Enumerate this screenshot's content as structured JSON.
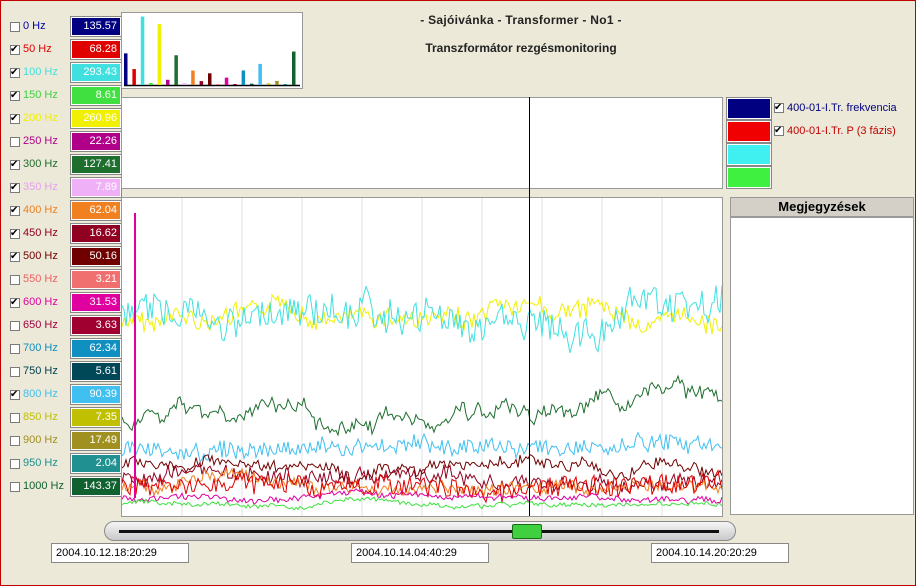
{
  "title": "- Sajóivánka - Transformer - No1 -",
  "subtitle": "Transzformátor rezgésmonitoring",
  "channels": [
    {
      "label": "0 Hz",
      "value": "135.57",
      "checked": false,
      "color": "#0000b0",
      "bg": "#000080"
    },
    {
      "label": "50 Hz",
      "value": "68.28",
      "checked": true,
      "color": "#e00000",
      "bg": "#e00000"
    },
    {
      "label": "100 Hz",
      "value": "293.43",
      "checked": true,
      "color": "#40e0e0",
      "bg": "#40e0e0"
    },
    {
      "label": "150 Hz",
      "value": "8.61",
      "checked": true,
      "color": "#40d040",
      "bg": "#40e040"
    },
    {
      "label": "200 Hz",
      "value": "260.96",
      "checked": true,
      "color": "#f0f000",
      "bg": "#f0f000"
    },
    {
      "label": "250 Hz",
      "value": "22.26",
      "checked": false,
      "color": "#b0008a",
      "bg": "#b0008a"
    },
    {
      "label": "300 Hz",
      "value": "127.41",
      "checked": true,
      "color": "#1e6e2e",
      "bg": "#1e6e2e"
    },
    {
      "label": "350 Hz",
      "value": "7.89",
      "checked": true,
      "color": "#e8a0f0",
      "bg": "#f0b0f8"
    },
    {
      "label": "400 Hz",
      "value": "62.04",
      "checked": true,
      "color": "#f08020",
      "bg": "#f08020"
    },
    {
      "label": "450 Hz",
      "value": "16.62",
      "checked": true,
      "color": "#900020",
      "bg": "#900020"
    },
    {
      "label": "500 Hz",
      "value": "50.16",
      "checked": true,
      "color": "#700000",
      "bg": "#700000"
    },
    {
      "label": "550 Hz",
      "value": "3.21",
      "checked": false,
      "color": "#f06060",
      "bg": "#f07070"
    },
    {
      "label": "600 Hz",
      "value": "31.53",
      "checked": true,
      "color": "#e000a0",
      "bg": "#e000a0"
    },
    {
      "label": "650 Hz",
      "value": "3.63",
      "checked": false,
      "color": "#a00040",
      "bg": "#a00030"
    },
    {
      "label": "700 Hz",
      "value": "62.34",
      "checked": false,
      "color": "#1090c0",
      "bg": "#1090c0"
    },
    {
      "label": "750 Hz",
      "value": "5.61",
      "checked": false,
      "color": "#004050",
      "bg": "#004858"
    },
    {
      "label": "800 Hz",
      "value": "90.39",
      "checked": true,
      "color": "#40c0f0",
      "bg": "#40c0f0"
    },
    {
      "label": "850 Hz",
      "value": "7.35",
      "checked": false,
      "color": "#c0c000",
      "bg": "#c0c000"
    },
    {
      "label": "900 Hz",
      "value": "17.49",
      "checked": false,
      "color": "#a09020",
      "bg": "#a09020"
    },
    {
      "label": "950 Hz",
      "value": "2.04",
      "checked": false,
      "color": "#209090",
      "bg": "#209090"
    },
    {
      "label": "1000 Hz",
      "value": "143.37",
      "checked": false,
      "color": "#106030",
      "bg": "#106030"
    }
  ],
  "legend": [
    {
      "label": "400-01-I.Tr. frekvencia",
      "color": "#000080",
      "text_color": "#000080",
      "checked": true
    },
    {
      "label": "400-01-I.Tr. P (3 fázis)",
      "color": "#f00000",
      "text_color": "#c00000",
      "checked": true
    },
    {
      "label": "",
      "color": "#40f0f0",
      "text_color": "#000",
      "checked": false
    },
    {
      "label": "",
      "color": "#40f040",
      "text_color": "#000",
      "checked": false
    }
  ],
  "notes": {
    "title": "Megjegyzések"
  },
  "dates": [
    "2004.10.12.18:20:29",
    "2004.10.14.04:40:29",
    "2004.10.14.20:20:29"
  ],
  "slider": {
    "position": 0.68
  },
  "chart_data": {
    "type": "bar",
    "categories": [
      "0 Hz",
      "50 Hz",
      "100 Hz",
      "150 Hz",
      "200 Hz",
      "250 Hz",
      "300 Hz",
      "350 Hz",
      "400 Hz",
      "450 Hz",
      "500 Hz",
      "550 Hz",
      "600 Hz",
      "650 Hz",
      "700 Hz",
      "750 Hz",
      "800 Hz",
      "850 Hz",
      "900 Hz",
      "950 Hz",
      "1000 Hz"
    ],
    "values": [
      135.57,
      68.28,
      293.43,
      8.61,
      260.96,
      22.26,
      127.41,
      7.89,
      62.04,
      16.62,
      50.16,
      3.21,
      31.53,
      3.63,
      62.34,
      5.61,
      90.39,
      7.35,
      17.49,
      2.04,
      143.37
    ],
    "ylim": [
      0,
      300
    ]
  }
}
